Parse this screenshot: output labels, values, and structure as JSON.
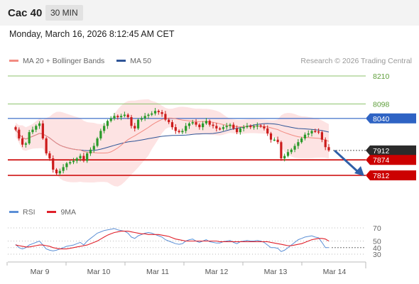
{
  "header": {
    "symbol": "Cac 40",
    "timeframe": "30 MIN"
  },
  "timestamp": "Monday, March 16, 2026 8:12:45 AM CET",
  "legend": {
    "items": [
      {
        "label": "MA 20 + Bollinger Bands",
        "color": "#f28b82"
      },
      {
        "label": "MA 50",
        "color": "#2f5597"
      }
    ],
    "copyright": "Research © 2026 Trading Central"
  },
  "rsi_legend": {
    "items": [
      {
        "label": "RSI",
        "color": "#5b8fd6"
      },
      {
        "label": "9MA",
        "color": "#e0202a"
      }
    ]
  },
  "colors": {
    "up": "#2a9a2a",
    "down": "#cc1b1b",
    "band_fill": "#fde3e3",
    "ma20": "#f28b82",
    "ma50": "#2f5597",
    "support": "#cc0000",
    "resistance_green": "#8cc26b",
    "resistance_blue": "#2e63c4",
    "current_tag": "#2b2b2b",
    "arrow": "#2f5fa8"
  },
  "chart_data": {
    "type": "candlestick",
    "price_axis": {
      "min": 7700,
      "max": 8300
    },
    "x_ticks": [
      "Mar 9",
      "Mar 10",
      "Mar 11",
      "Mar 12",
      "Mar 13",
      "Mar 14"
    ],
    "levels": [
      {
        "value": 8210,
        "label": "8210",
        "kind": "resistance",
        "style": "green-line"
      },
      {
        "value": 8098,
        "label": "8098",
        "kind": "resistance",
        "style": "green-line"
      },
      {
        "value": 8040,
        "label": "8040",
        "kind": "resistance",
        "style": "blue-tag"
      },
      {
        "value": 7912,
        "label": "7912",
        "kind": "current",
        "style": "dark-tag"
      },
      {
        "value": 7874,
        "label": "7874",
        "kind": "support",
        "style": "red-tag"
      },
      {
        "value": 7812,
        "label": "7812",
        "kind": "support",
        "style": "red-tag"
      }
    ],
    "projection": {
      "from": 7912,
      "to": 7812,
      "direction": "down"
    },
    "closes": [
      7995,
      7960,
      7935,
      7940,
      7985,
      7995,
      8010,
      8020,
      7960,
      7900,
      7880,
      7835,
      7820,
      7830,
      7845,
      7860,
      7865,
      7870,
      7880,
      7890,
      7870,
      7900,
      7915,
      7930,
      7960,
      7990,
      8010,
      8030,
      8040,
      8050,
      8045,
      8050,
      8055,
      8045,
      8010,
      8000,
      8035,
      8040,
      8050,
      8055,
      8060,
      8070,
      8065,
      8058,
      8035,
      8025,
      8005,
      7990,
      7985,
      7990,
      8010,
      8020,
      8025,
      8015,
      8005,
      8020,
      8030,
      8015,
      8010,
      8000,
      7998,
      8005,
      8010,
      8015,
      8000,
      7985,
      8000,
      8005,
      8010,
      8005,
      8008,
      8012,
      8008,
      8000,
      7980,
      7955,
      7955,
      7945,
      7880,
      7890,
      7905,
      7915,
      7930,
      7945,
      7960,
      7975,
      7980,
      7990,
      7988,
      7985,
      7955,
      7925,
      7912
    ],
    "rsi": {
      "ylim": [
        20,
        80
      ],
      "ticks": [
        70,
        50,
        40,
        30
      ],
      "rsi_values": [
        45,
        40,
        38,
        40,
        44,
        46,
        48,
        50,
        44,
        38,
        36,
        35,
        36,
        38,
        40,
        42,
        43,
        44,
        46,
        48,
        44,
        50,
        54,
        58,
        62,
        64,
        66,
        67,
        68,
        69,
        67,
        66,
        65,
        62,
        56,
        54,
        58,
        60,
        62,
        63,
        62,
        60,
        58,
        56,
        52,
        50,
        48,
        46,
        45,
        46,
        50,
        52,
        53,
        50,
        48,
        50,
        52,
        49,
        48,
        47,
        47,
        49,
        50,
        51,
        48,
        46,
        49,
        50,
        51,
        50,
        50,
        51,
        50,
        48,
        44,
        40,
        40,
        39,
        34,
        36,
        40,
        44,
        48,
        52,
        54,
        56,
        57,
        58,
        56,
        55,
        48,
        40,
        40
      ],
      "ma_values": [
        44,
        43,
        42,
        41,
        41,
        42,
        43,
        44,
        44,
        43,
        42,
        40,
        39,
        38,
        38,
        38,
        39,
        40,
        41,
        42,
        43,
        44,
        46,
        48,
        50,
        53,
        56,
        59,
        61,
        63,
        64,
        65,
        65,
        65,
        64,
        63,
        62,
        61,
        61,
        60,
        60,
        60,
        60,
        59,
        58,
        57,
        55,
        53,
        52,
        51,
        50,
        50,
        50,
        50,
        50,
        50,
        50,
        50,
        50,
        50,
        49,
        49,
        49,
        49,
        49,
        49,
        49,
        49,
        49,
        49,
        49,
        49,
        49,
        49,
        49,
        48,
        47,
        46,
        45,
        44,
        43,
        43,
        44,
        45,
        46,
        48,
        50,
        52,
        53,
        54,
        54,
        53,
        50
      ]
    }
  }
}
